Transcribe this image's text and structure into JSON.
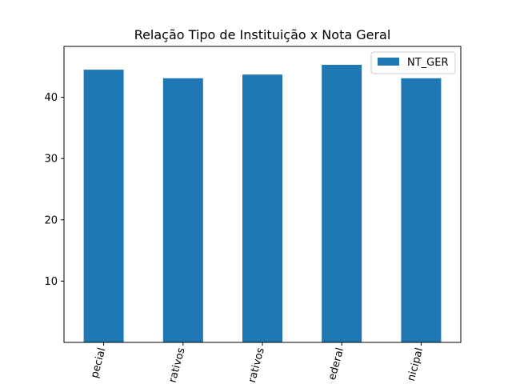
{
  "chart_data": {
    "type": "bar",
    "title": "Relação Tipo de Instituição x Nota Geral",
    "xlabel": "",
    "ylabel": "",
    "categories": [
      "pecial",
      "rativos",
      "rativos",
      "ederal",
      "nicipal"
    ],
    "series": [
      {
        "name": "NT_GER",
        "values": [
          44.5,
          43.1,
          43.7,
          45.3,
          43.1
        ]
      }
    ],
    "ylim": [
      0,
      48.3
    ],
    "yticks": [
      10,
      20,
      30,
      40
    ],
    "grid": false,
    "legend_position": "top-right",
    "bar_color": "#1f77b4"
  }
}
